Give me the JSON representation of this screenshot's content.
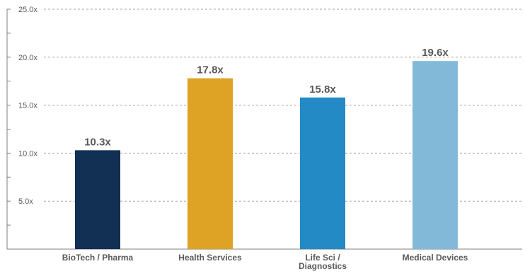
{
  "chart_data": {
    "type": "bar",
    "categories": [
      "BioTech / Pharma",
      "Health Services",
      "Life Sci / Diagnostics",
      "Medical Devices"
    ],
    "category_lines": [
      [
        "BioTech / Pharma"
      ],
      [
        "Health Services"
      ],
      [
        "Life Sci /",
        "Diagnostics"
      ],
      [
        "Medical Devices"
      ]
    ],
    "values": [
      10.3,
      17.8,
      15.8,
      19.6
    ],
    "data_labels": [
      "10.3x",
      "17.8x",
      "15.8x",
      "19.6x"
    ],
    "colors": [
      "#122f54",
      "#dea224",
      "#238ac5",
      "#82b9d9"
    ],
    "ylim": [
      0,
      25
    ],
    "y_ticks": [
      5,
      10,
      15,
      20,
      25
    ],
    "y_tick_labels": [
      "5.0x",
      "10.0x",
      "15.0x",
      "20.0x",
      "25.0x"
    ],
    "grid": true,
    "legend": false
  }
}
